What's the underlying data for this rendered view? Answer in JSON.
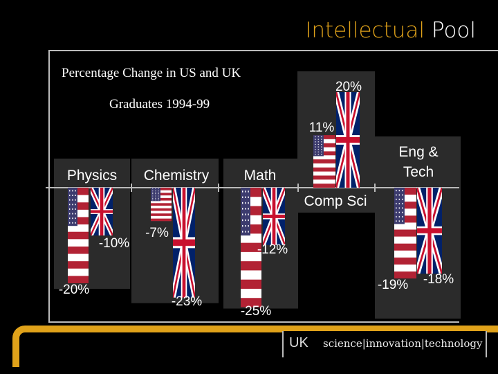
{
  "header": {
    "title_part1": "Intellectual",
    "title_part2": "Pool",
    "subtitle_line1": "Percentage Change in US and UK",
    "subtitle_line2": "Graduates 1994-99"
  },
  "footer": {
    "uk_label": "UK",
    "tagline": "science|innovation|technology"
  },
  "colors": {
    "accent": "#e0a21a",
    "background": "#000000",
    "panel": "#2b2b2b",
    "us_red": "#b22234",
    "us_blue": "#3c3b6e",
    "uk_blue": "#012169",
    "uk_red": "#c8102e"
  },
  "chart_data": {
    "type": "bar",
    "title": "Percentage Change in US and UK Graduates 1994-99",
    "categories": [
      "Physics",
      "Chemistry",
      "Math",
      "Comp Sci",
      "Eng & Tech"
    ],
    "series": [
      {
        "name": "US",
        "flag": "us-flag",
        "values": [
          -20,
          -7,
          -25,
          11,
          -19
        ],
        "labels": [
          "-20%",
          "-7%",
          "-25%",
          "11%",
          "-19%"
        ]
      },
      {
        "name": "UK",
        "flag": "uk-flag",
        "values": [
          -10,
          -23,
          -12,
          20,
          -18
        ],
        "labels": [
          "-10%",
          "-23%",
          "-12%",
          "20%",
          "-18%"
        ]
      }
    ],
    "ylim": [
      -25,
      20
    ],
    "ylabel": "",
    "xlabel": "",
    "grid": false,
    "legend": "none"
  }
}
